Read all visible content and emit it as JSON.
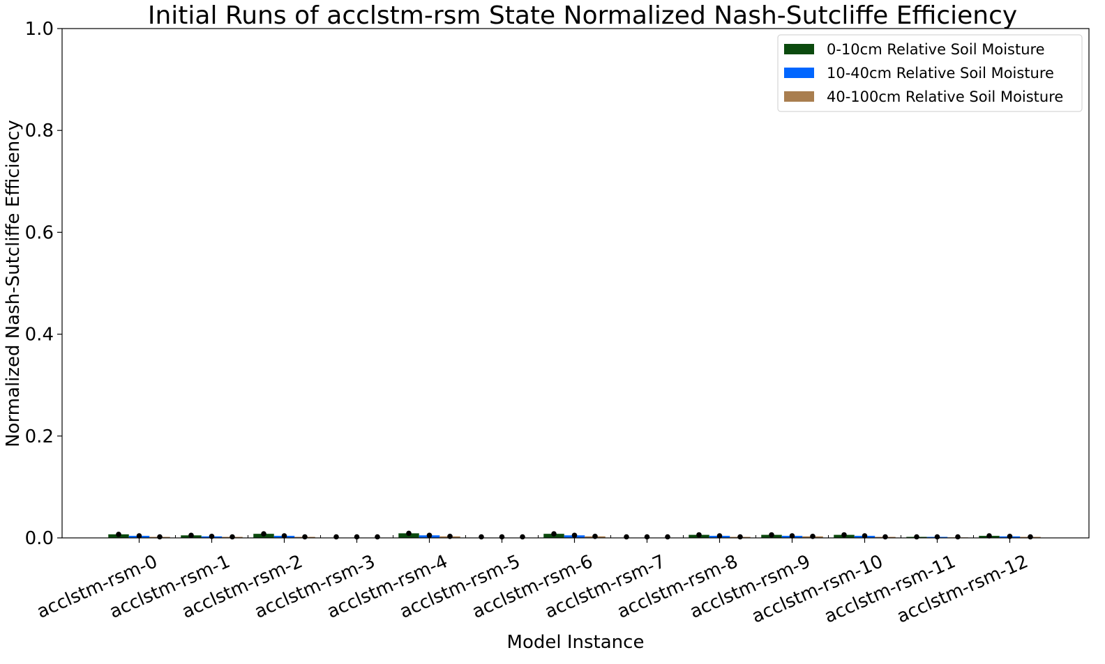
{
  "chart_data": {
    "type": "bar",
    "title": "Initial Runs of acclstm-rsm State Normalized Nash-Sutcliffe Efficiency",
    "xlabel": "Model Instance",
    "ylabel": "Normalized Nash-Sutcliffe Efficiency",
    "ylim": [
      0,
      1.0
    ],
    "yticks": [
      "0.0",
      "0.2",
      "0.4",
      "0.6",
      "0.8",
      "1.0"
    ],
    "grid": false,
    "legend_position": "top-right",
    "categories": [
      "acclstm-rsm-0",
      "acclstm-rsm-1",
      "acclstm-rsm-2",
      "acclstm-rsm-3",
      "acclstm-rsm-4",
      "acclstm-rsm-5",
      "acclstm-rsm-6",
      "acclstm-rsm-7",
      "acclstm-rsm-8",
      "acclstm-rsm-9",
      "acclstm-rsm-10",
      "acclstm-rsm-11",
      "acclstm-rsm-12"
    ],
    "series": [
      {
        "name": "0-10cm Relative Soil Moisture",
        "color": "#0b4a0e",
        "values": [
          0.007,
          0.005,
          0.008,
          0.0005,
          0.009,
          0.0005,
          0.008,
          0.0005,
          0.006,
          0.006,
          0.006,
          0.002,
          0.004
        ]
      },
      {
        "name": "10-40cm Relative Soil Moisture",
        "color": "#0066ff",
        "values": [
          0.004,
          0.003,
          0.004,
          0.0003,
          0.005,
          0.0003,
          0.005,
          0.0003,
          0.004,
          0.004,
          0.004,
          0.002,
          0.003
        ]
      },
      {
        "name": "40-100cm Relative Soil Moisture",
        "color": "#a97e4f",
        "values": [
          0.002,
          0.002,
          0.002,
          0.0002,
          0.003,
          0.0002,
          0.003,
          0.0002,
          0.002,
          0.003,
          0.002,
          0.001,
          0.002
        ]
      }
    ]
  }
}
